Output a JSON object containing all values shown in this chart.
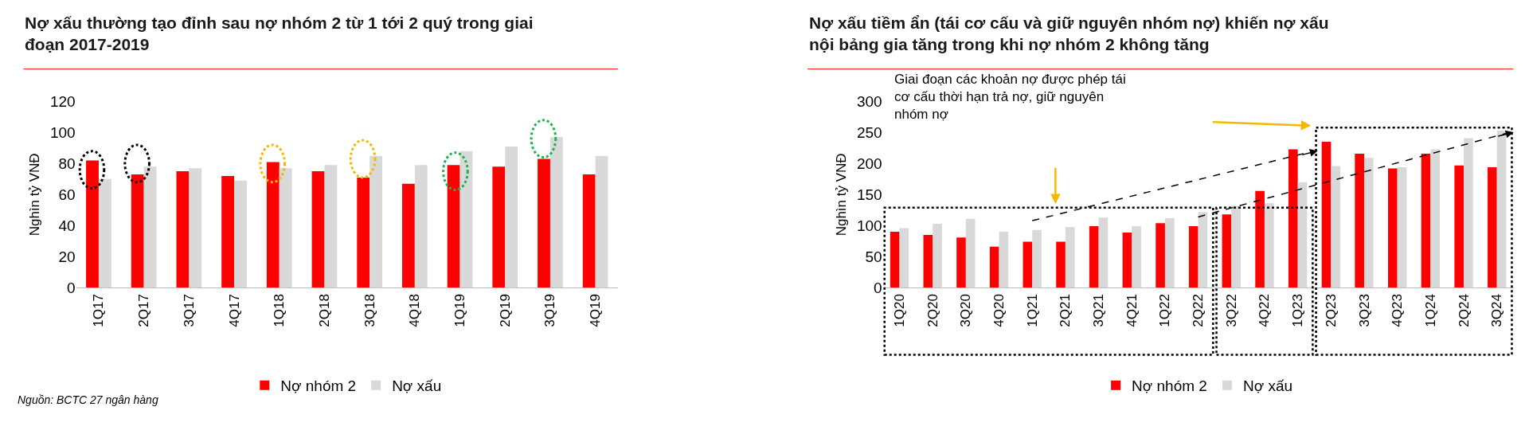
{
  "chart_data": [
    {
      "type": "bar",
      "title": "Nợ xấu thường tạo đỉnh sau nợ nhóm 2 từ 1 tới 2 quý trong giai đoạn 2017-2019",
      "ylabel": "Nghìn tỷ VNĐ",
      "categories": [
        "1Q17",
        "2Q17",
        "3Q17",
        "4Q17",
        "1Q18",
        "2Q18",
        "3Q18",
        "4Q18",
        "1Q19",
        "2Q19",
        "3Q19",
        "4Q19"
      ],
      "series": [
        {
          "name": "Nợ nhóm 2",
          "color": "#ff0000",
          "values": [
            82,
            73,
            75,
            72,
            81,
            75,
            71,
            67,
            79,
            78,
            83,
            73
          ]
        },
        {
          "name": "Nợ xấu",
          "color": "#d9d9d9",
          "values": [
            70,
            78,
            77,
            69,
            77,
            79,
            85,
            79,
            88,
            91,
            97,
            85
          ]
        }
      ],
      "ylim": [
        0,
        120
      ],
      "yticks": [
        0,
        20,
        40,
        60,
        80,
        100,
        120
      ],
      "grid": false,
      "legend": "bottom",
      "annotations": [
        "Nguồn: BCTC 27 ngân hàng"
      ]
    },
    {
      "type": "bar",
      "title": "Nợ xấu tiềm ẩn (tái cơ cấu và giữ nguyên nhóm nợ) khiến nợ xấu nội bảng gia tăng trong khi nợ nhóm 2 không tăng",
      "ylabel": "Nghìn tỷ VNĐ",
      "categories": [
        "1Q20",
        "2Q20",
        "3Q20",
        "4Q20",
        "1Q21",
        "2Q21",
        "3Q21",
        "4Q21",
        "1Q22",
        "2Q22",
        "3Q22",
        "4Q22",
        "1Q23",
        "2Q23",
        "3Q23",
        "4Q23",
        "1Q24",
        "2Q24",
        "3Q24"
      ],
      "series": [
        {
          "name": "Nợ nhóm 2",
          "color": "#ff0000",
          "values": [
            90,
            85,
            81,
            66,
            74,
            74,
            99,
            89,
            104,
            99,
            118,
            156,
            223,
            235,
            216,
            192,
            216,
            197,
            194
          ]
        },
        {
          "name": "Nợ xấu",
          "color": "#d9d9d9",
          "values": [
            96,
            103,
            111,
            90,
            93,
            98,
            113,
            99,
            112,
            122,
            132,
            136,
            170,
            196,
            209,
            194,
            223,
            241,
            253
          ]
        }
      ],
      "ylim": [
        0,
        300
      ],
      "yticks": [
        0,
        50,
        100,
        150,
        200,
        250,
        300
      ],
      "grid": false,
      "legend": "bottom",
      "annotations": [
        "Giai đoạn các khoản nợ được phép tái cơ cấu thời hạn trả nợ, giữ nguyên nhóm nợ"
      ]
    }
  ]
}
